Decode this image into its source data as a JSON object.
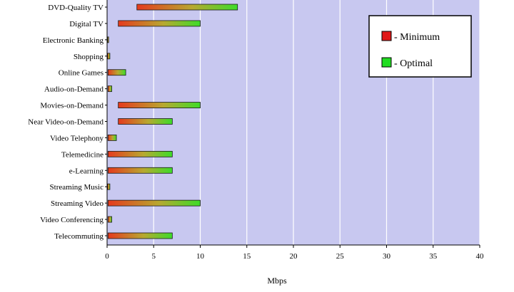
{
  "chart_data": {
    "type": "bar",
    "orientation": "horizontal",
    "stacked": false,
    "style": "each bar runs from the minimum value to the optimal value, colored red (minimum end) to green (optimal end)",
    "categories": [
      "DVD-Quality TV",
      "Digital TV",
      "Electronic Banking",
      "Shopping",
      "Online Games",
      "Audio-on-Demand",
      "Movies-on-Demand",
      "Near Video-on-Demand",
      "Video Telephony",
      "Telemedicine",
      "e-Learning",
      "Streaming Music",
      "Streaming Video",
      "Video Conferencing",
      "Telecommuting"
    ],
    "series": [
      {
        "name": "- Minimum",
        "values": [
          3.2,
          1.2,
          0.05,
          0.05,
          0.1,
          0.1,
          1.2,
          1.2,
          0.1,
          0.1,
          0.1,
          0.05,
          0.1,
          0.1,
          0.1
        ]
      },
      {
        "name": "- Optimal",
        "values": [
          14,
          10,
          0.1,
          0.3,
          2,
          0.5,
          10,
          7,
          1,
          7,
          7,
          0.3,
          10,
          0.5,
          7
        ]
      }
    ],
    "xlim": [
      0,
      40
    ],
    "xticks": [
      "0",
      "5",
      "10",
      "15",
      "20",
      "25",
      "30",
      "35",
      "40"
    ],
    "xlabel": "Mbps",
    "ylabel": "",
    "title": "",
    "grid": "vertical lines",
    "legend_position": "top-right",
    "colors": {
      "plot_background": "#c8c8f0",
      "grid": "#ffffff",
      "minimum": "#e53a1e",
      "optimal": "#3ddc2a",
      "legend_minimum": "#e01818",
      "legend_optimal": "#22dd22"
    }
  }
}
